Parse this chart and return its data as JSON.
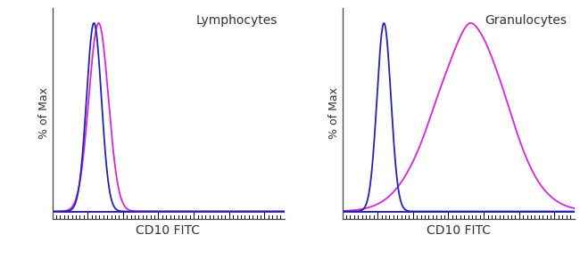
{
  "panel1_title": "Lymphocytes",
  "panel2_title": "Granulocytes",
  "xlabel": "CD10 FITC",
  "ylabel": "% of Max",
  "blue_color": "#2222bb",
  "magenta_color": "#dd22dd",
  "bg_color": "#ffffff",
  "line_width": 1.3,
  "panel1": {
    "blue_mu": 0.18,
    "blue_sigma": 0.032,
    "magenta_mu": 0.2,
    "magenta_sigma": 0.042
  },
  "panel2": {
    "blue_mu": 0.18,
    "blue_sigma": 0.03,
    "magenta_mu": 0.55,
    "magenta_sigma": 0.16
  },
  "bump_positions": [
    0.42,
    0.5,
    0.55,
    0.6,
    0.65,
    0.7,
    0.75
  ],
  "bump_heights": [
    0.05,
    0.12,
    0.18,
    0.15,
    0.1,
    0.07,
    0.04
  ],
  "bump_widths": [
    0.04,
    0.035,
    0.03,
    0.035,
    0.04,
    0.04,
    0.05
  ],
  "tick_count": 60,
  "xlim": [
    0,
    1
  ],
  "ylim": [
    -0.04,
    1.08
  ]
}
